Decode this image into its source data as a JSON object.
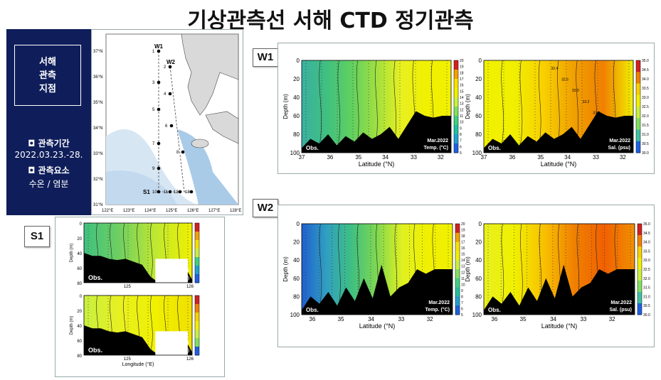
{
  "title": "기상관측선 서해 CTD 정기관측",
  "info": {
    "site_label_1": "서해",
    "site_label_2": "관측",
    "site_label_3": "지점",
    "period_label": "◘ 관측기간",
    "period_value": "2022.03.23.-28.",
    "elements_label": "◘ 관측요소",
    "elements_value": "수온 / 염분"
  },
  "map": {
    "lat_labels": [
      "37°N",
      "36°N",
      "35°N",
      "34°N",
      "33°N",
      "32°N",
      "31°N"
    ],
    "lon_labels": [
      "122°E",
      "123°E",
      "124°E",
      "125°E",
      "126°E",
      "127°E",
      "128°E"
    ],
    "line_labels": [
      "W1",
      "W2",
      "S1"
    ],
    "station_numbers": [
      "1",
      "2",
      "3",
      "4",
      "5",
      "6",
      "7",
      "8",
      "9",
      "10",
      "11",
      "12",
      "13"
    ],
    "colors": {
      "sea_shallow": "#cfe2f2",
      "sea_deep": "#eef4fa",
      "land": "#d9d9d9"
    }
  },
  "section_tags": {
    "w1": "W1",
    "w2": "W2",
    "s1": "S1"
  },
  "chart_data": [
    {
      "id": "W1-temp",
      "type": "heatmap",
      "xlabel": "Latitude (°N)",
      "ylabel": "Depth (m)",
      "x_ticks": [
        "37",
        "36",
        "35",
        "34",
        "33",
        "32"
      ],
      "y_ticks": [
        "0",
        "20",
        "40",
        "60",
        "80",
        "100"
      ],
      "xlim": [
        37,
        31.6
      ],
      "ylim": [
        0,
        100
      ],
      "obs_label": "Obs.",
      "caption_1": "Mar.2022",
      "caption_2": "Temp. (°C)",
      "colorbar_ticks": [
        "20",
        "19",
        "18",
        "17",
        "16",
        "15",
        "14",
        "13",
        "12",
        "11",
        "10",
        "9",
        "8",
        "7",
        "6",
        "5"
      ],
      "colorbar": [
        "#d42020",
        "#f4a000",
        "#f8e000",
        "#f0f000",
        "#c8f040",
        "#80e060",
        "#40d080",
        "#20c0a0",
        "#20a0d0",
        "#2060e0"
      ],
      "temperature_range": [
        5,
        20
      ],
      "surface_profile": {
        "lat": [
          37,
          36.5,
          36,
          35.5,
          35,
          34.5,
          34,
          33.5,
          33,
          32.5,
          32,
          31.6
        ],
        "value": [
          8.5,
          9,
          9.5,
          10.5,
          11,
          12,
          13,
          14.5,
          15.5,
          16,
          16.5,
          16.8
        ]
      }
    },
    {
      "id": "W1-sal",
      "type": "heatmap",
      "xlabel": "Latitude (°N)",
      "ylabel": "Depth (m)",
      "x_ticks": [
        "37",
        "36",
        "35",
        "34",
        "33",
        "32"
      ],
      "y_ticks": [
        "0",
        "20",
        "40",
        "60",
        "80",
        "100"
      ],
      "xlim": [
        37,
        31.6
      ],
      "ylim": [
        0,
        100
      ],
      "obs_label": "Obs.",
      "caption_1": "Mar.2022",
      "caption_2": "Sal. (psu)",
      "colorbar_ticks": [
        "35.0",
        "34.5",
        "34.0",
        "33.5",
        "33.0",
        "32.5",
        "32.0",
        "31.5",
        "31.0",
        "30.5",
        "30.0"
      ],
      "colorbar": [
        "#d42020",
        "#f08000",
        "#f8d000",
        "#f0f000",
        "#c8f040",
        "#80e060",
        "#40c0a0",
        "#2060e0"
      ],
      "salinity_range": [
        30,
        35
      ],
      "contour_labels": [
        "32.4",
        "32.6",
        "33.0",
        "33.2",
        "33.4"
      ]
    },
    {
      "id": "W2-temp",
      "type": "heatmap",
      "xlabel": "Latitude (°N)",
      "ylabel": "Depth (m)",
      "x_ticks": [
        "36",
        "35",
        "34",
        "33",
        "32"
      ],
      "y_ticks": [
        "0",
        "20",
        "40",
        "60",
        "80",
        "100"
      ],
      "xlim": [
        36.4,
        31.6
      ],
      "ylim": [
        0,
        100
      ],
      "obs_label": "Obs.",
      "caption_1": "Mar.2022",
      "caption_2": "Temp. (°C)",
      "colorbar_ticks": [
        "20",
        "19",
        "18",
        "17",
        "16",
        "15",
        "14",
        "13",
        "12",
        "11",
        "10",
        "9",
        "8",
        "7",
        "6",
        "5"
      ],
      "colorbar": [
        "#d42020",
        "#f4a000",
        "#f8e000",
        "#f0f000",
        "#c8f040",
        "#80e060",
        "#40d080",
        "#20c0a0",
        "#20a0d0",
        "#2060e0"
      ],
      "temperature_range": [
        5,
        20
      ]
    },
    {
      "id": "W2-sal",
      "type": "heatmap",
      "xlabel": "Latitude (°N)",
      "ylabel": "Depth (m)",
      "x_ticks": [
        "36",
        "35",
        "34",
        "33",
        "32"
      ],
      "y_ticks": [
        "0",
        "20",
        "40",
        "60",
        "80",
        "100"
      ],
      "xlim": [
        36.4,
        31.6
      ],
      "ylim": [
        0,
        100
      ],
      "obs_label": "Obs.",
      "caption_1": "Mar.2022",
      "caption_2": "Sal. (psu)",
      "colorbar_ticks": [
        "35.0",
        "34.5",
        "34.0",
        "33.5",
        "33.0",
        "32.5",
        "32.0",
        "31.5",
        "31.0",
        "30.5",
        "30.0"
      ],
      "colorbar": [
        "#d42020",
        "#f08000",
        "#f8d000",
        "#f0f000",
        "#c8f040",
        "#80e060",
        "#40c0a0",
        "#2060e0"
      ],
      "salinity_range": [
        30,
        35
      ]
    },
    {
      "id": "S1-temp",
      "type": "heatmap",
      "xlabel": "",
      "ylabel": "Depth (m)",
      "x_ticks": [
        "125",
        "126"
      ],
      "y_ticks": [
        "0",
        "20",
        "40",
        "60",
        "80"
      ],
      "xlim": [
        124.0,
        126.0
      ],
      "ylim": [
        0,
        80
      ],
      "obs_label": "Obs.",
      "caption_1": "Mar.2022",
      "caption_2": "Temp. (°C)",
      "colorbar": [
        "#d42020",
        "#f4a000",
        "#f8e000",
        "#c8f040",
        "#40d080",
        "#20a0d0",
        "#2060e0"
      ]
    },
    {
      "id": "S1-sal",
      "type": "heatmap",
      "xlabel": "Longitude (°E)",
      "ylabel": "Depth (m)",
      "x_ticks": [
        "125",
        "126"
      ],
      "y_ticks": [
        "0",
        "20",
        "40",
        "60",
        "80"
      ],
      "xlim": [
        124.0,
        126.0
      ],
      "ylim": [
        0,
        80
      ],
      "obs_label": "Obs.",
      "caption_1": "Mar.2022",
      "caption_2": "Sal.(psu)",
      "colorbar": [
        "#d42020",
        "#f08000",
        "#f8d000",
        "#f0f000",
        "#c8f040",
        "#80e060",
        "#2060e0"
      ]
    }
  ]
}
